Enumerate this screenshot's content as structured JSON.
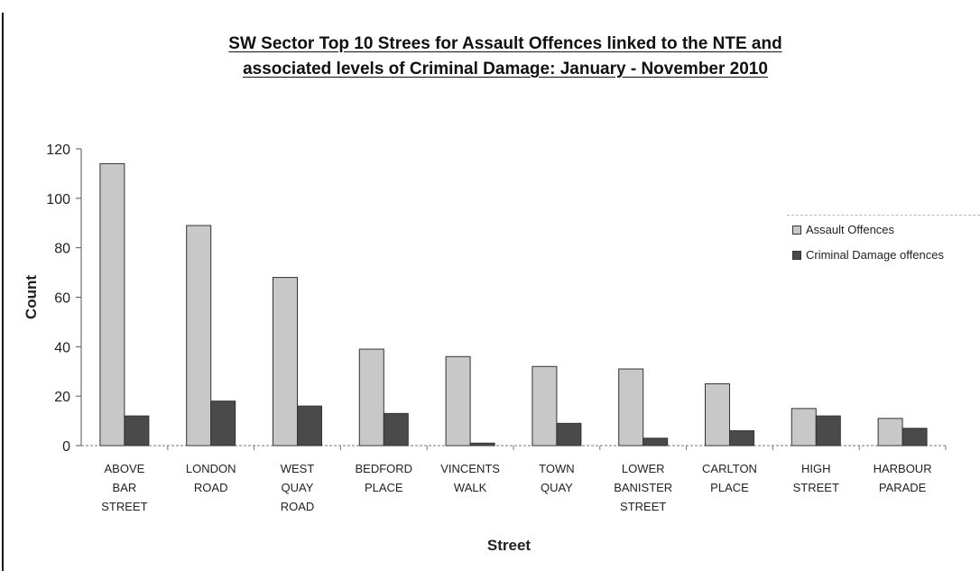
{
  "chart_data": {
    "type": "bar",
    "title_line1": "SW Sector Top 10 Strees for Assault Offences linked to the NTE and",
    "title_line2": "associated levels of Criminal Damage: January - November 2010",
    "xlabel": "Street",
    "ylabel": "Count",
    "ylim": [
      0,
      120
    ],
    "yticks": [
      "0",
      "20",
      "40",
      "60",
      "80",
      "100",
      "120"
    ],
    "categories": [
      [
        "ABOVE",
        "BAR",
        "STREET"
      ],
      [
        "LONDON",
        "ROAD"
      ],
      [
        "WEST",
        "QUAY",
        "ROAD"
      ],
      [
        "BEDFORD",
        "PLACE"
      ],
      [
        "VINCENTS",
        "WALK"
      ],
      [
        "TOWN",
        "QUAY"
      ],
      [
        "LOWER",
        "BANISTER",
        "STREET"
      ],
      [
        "CARLTON",
        "PLACE"
      ],
      [
        "HIGH",
        "STREET"
      ],
      [
        "HARBOUR",
        "PARADE"
      ]
    ],
    "series": [
      {
        "name": "Assault Offences",
        "color": "#c8c8c8",
        "values": [
          114,
          89,
          68,
          39,
          36,
          32,
          31,
          25,
          15,
          11
        ]
      },
      {
        "name": "Criminal Damage offences",
        "color": "#4a4a4a",
        "values": [
          12,
          18,
          16,
          13,
          1,
          9,
          3,
          6,
          12,
          7
        ]
      }
    ],
    "legend_position": "right",
    "grid": false
  }
}
